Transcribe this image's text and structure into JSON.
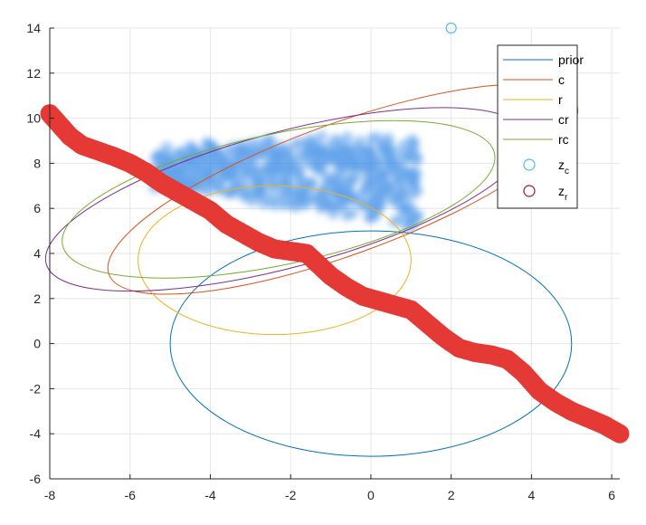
{
  "chart_data": {
    "type": "scatter",
    "title": "",
    "xlabel": "",
    "ylabel": "",
    "xlim": [
      -8,
      6.2
    ],
    "ylim": [
      -6,
      14
    ],
    "grid": true,
    "legend_position": "top-right",
    "xticks": [
      "-8",
      "-6",
      "-4",
      "-2",
      "0",
      "2",
      "4",
      "6"
    ],
    "yticks": [
      "-6",
      "-4",
      "-2",
      "0",
      "2",
      "4",
      "6",
      "8",
      "10",
      "12",
      "14"
    ],
    "ellipses": [
      {
        "name": "prior",
        "color": "#0072BD",
        "center": [
          0,
          0
        ],
        "semi_axes": [
          5,
          5
        ],
        "angle_deg": 0
      },
      {
        "name": "c",
        "color": "#D95319",
        "center": [
          -0.7,
          6.85
        ],
        "semi_axes": [
          6.2,
          2.9
        ],
        "angle_deg": 20
      },
      {
        "name": "r",
        "color": "#EDB120",
        "center": [
          -2.4,
          3.7
        ],
        "semi_axes": [
          3.4,
          3.3
        ],
        "angle_deg": 0
      },
      {
        "name": "cr",
        "color": "#7E2F8E",
        "center": [
          -2.1,
          6.4
        ],
        "semi_axes": [
          6.2,
          3.0
        ],
        "angle_deg": 15
      },
      {
        "name": "rc",
        "color": "#77AC30",
        "center": [
          -2.3,
          6.4
        ],
        "semi_axes": [
          5.5,
          2.9
        ],
        "angle_deg": 12
      }
    ],
    "z_c": {
      "name": "z",
      "subscript": "c",
      "color": "#4DBEEE",
      "x": 2,
      "y": 14
    },
    "z_r": {
      "name": "z",
      "subscript": "r",
      "color": "#E53935",
      "points": [
        [
          -8.0,
          10.2
        ],
        [
          -7.8,
          9.8
        ],
        [
          -7.5,
          9.2
        ],
        [
          -7.2,
          8.8
        ],
        [
          -6.8,
          8.55
        ],
        [
          -6.4,
          8.3
        ],
        [
          -6.0,
          8.0
        ],
        [
          -5.6,
          7.6
        ],
        [
          -5.2,
          7.1
        ],
        [
          -4.8,
          6.7
        ],
        [
          -4.4,
          6.3
        ],
        [
          -4.0,
          5.9
        ],
        [
          -3.6,
          5.3
        ],
        [
          -3.2,
          4.9
        ],
        [
          -2.8,
          4.5
        ],
        [
          -2.4,
          4.2
        ],
        [
          -2.0,
          4.1
        ],
        [
          -1.6,
          4.0
        ],
        [
          -1.3,
          3.5
        ],
        [
          -1.0,
          3.0
        ],
        [
          -0.6,
          2.5
        ],
        [
          -0.2,
          2.1
        ],
        [
          0.2,
          1.9
        ],
        [
          0.6,
          1.7
        ],
        [
          1.0,
          1.5
        ],
        [
          1.4,
          0.9
        ],
        [
          1.8,
          0.3
        ],
        [
          2.2,
          -0.2
        ],
        [
          2.6,
          -0.4
        ],
        [
          3.0,
          -0.5
        ],
        [
          3.4,
          -0.7
        ],
        [
          3.8,
          -1.3
        ],
        [
          4.2,
          -2.1
        ],
        [
          4.6,
          -2.6
        ],
        [
          5.0,
          -3.0
        ],
        [
          5.4,
          -3.3
        ],
        [
          5.8,
          -3.6
        ],
        [
          6.2,
          -4.0
        ]
      ]
    },
    "blue_cloud": {
      "color": "#3C8CE6",
      "x_range": [
        -5.4,
        1.2
      ],
      "y_range": [
        5.0,
        10.2
      ]
    },
    "legend": [
      "prior",
      "c",
      "r",
      "cr",
      "rc"
    ]
  }
}
